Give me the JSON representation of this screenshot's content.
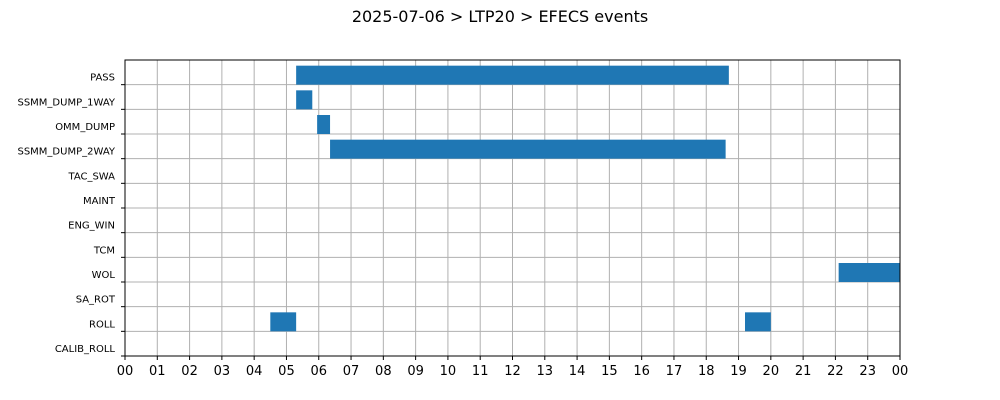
{
  "chart_data": {
    "type": "bar",
    "orientation": "horizontal-timeline",
    "title": "2025-07-06 > LTP20 > EFECS events",
    "xlabel": "",
    "ylabel": "",
    "x_ticks": [
      "00",
      "01",
      "02",
      "03",
      "04",
      "05",
      "06",
      "07",
      "08",
      "09",
      "10",
      "11",
      "12",
      "13",
      "14",
      "15",
      "16",
      "17",
      "18",
      "19",
      "20",
      "21",
      "22",
      "23",
      "00"
    ],
    "xlim": [
      0,
      24
    ],
    "grid": true,
    "categories": [
      "PASS",
      "SSMM_DUMP_1WAY",
      "OMM_DUMP",
      "SSMM_DUMP_2WAY",
      "TAC_SWA",
      "MAINT",
      "ENG_WIN",
      "TCM",
      "WOL",
      "SA_ROT",
      "ROLL",
      "CALIB_ROLL"
    ],
    "bar_color": "#1f77b4",
    "events": [
      {
        "category": "PASS",
        "start": 5.3,
        "end": 18.7
      },
      {
        "category": "SSMM_DUMP_1WAY",
        "start": 5.3,
        "end": 5.8
      },
      {
        "category": "OMM_DUMP",
        "start": 5.95,
        "end": 6.35
      },
      {
        "category": "SSMM_DUMP_2WAY",
        "start": 6.35,
        "end": 18.6
      },
      {
        "category": "WOL",
        "start": 22.1,
        "end": 24.0
      },
      {
        "category": "ROLL",
        "start": 4.5,
        "end": 5.3
      },
      {
        "category": "ROLL",
        "start": 19.2,
        "end": 20.0
      }
    ]
  }
}
